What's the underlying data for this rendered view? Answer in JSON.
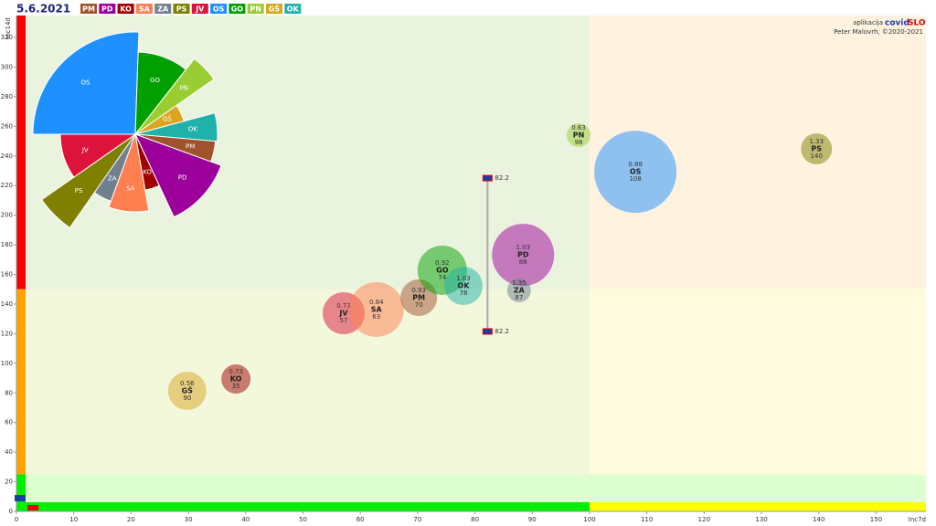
{
  "date": "5.6.2021",
  "legend": [
    {
      "name": "PM",
      "color": "#a0522d"
    },
    {
      "name": "PD",
      "color": "#9b009b"
    },
    {
      "name": "KO",
      "color": "#a00000"
    },
    {
      "name": "SA",
      "color": "#ff7f50"
    },
    {
      "name": "ZA",
      "color": "#708090"
    },
    {
      "name": "PS",
      "color": "#808000"
    },
    {
      "name": "JV",
      "color": "#dc143c"
    },
    {
      "name": "OS",
      "color": "#1e90ff"
    },
    {
      "name": "GO",
      "color": "#00a000"
    },
    {
      "name": "PN",
      "color": "#9acd32"
    },
    {
      "name": "GŠ",
      "color": "#daa520"
    },
    {
      "name": "OK",
      "color": "#20b2aa"
    }
  ],
  "credit": {
    "app": "aplikacija",
    "brand1": "covid",
    "brand2": "SLO",
    "author": "Peter Malovrh, ©2020-2021"
  },
  "chart_data": [
    {
      "type": "bubble",
      "x_label": "Inc7d",
      "y_label": "Inc14d",
      "xlim": [
        0,
        158.7
      ],
      "ylim": [
        0,
        334.8
      ],
      "xticks": [
        0,
        10,
        20,
        30,
        40,
        50,
        60,
        70,
        80,
        90,
        100,
        110,
        120,
        130,
        140,
        150
      ],
      "yticks": [
        0,
        20,
        40,
        60,
        80,
        100,
        120,
        140,
        160,
        180,
        200,
        220,
        240,
        260,
        280,
        300,
        320
      ],
      "xthreshold": 100,
      "ythresholds": [
        25,
        150
      ],
      "names": [
        "GŠ",
        "KO",
        "JV",
        "SA",
        "PM",
        "GO",
        "OK",
        "PD",
        "ZA",
        "PN",
        "OS",
        "PS"
      ],
      "x": [
        29.8,
        38.3,
        57.1,
        62.8,
        70.2,
        74.3,
        78.0,
        88.4,
        87.7,
        98.1,
        108.0,
        139.6
      ],
      "y": [
        81.4,
        89.4,
        133.8,
        136.3,
        144.3,
        162.8,
        152.3,
        173.2,
        149.2,
        254.0,
        229.3,
        244.8
      ],
      "sizes": [
        21,
        16,
        23,
        30,
        20,
        27,
        21,
        34,
        13,
        13,
        45,
        17
      ],
      "ratios": [
        0.56,
        0.73,
        0.73,
        0.84,
        0.93,
        0.92,
        1.03,
        1.03,
        1.35,
        0.63,
        0.88,
        1.33
      ],
      "counts": [
        90,
        35,
        57,
        63,
        70,
        74,
        78,
        88,
        87,
        98,
        108,
        140
      ],
      "slovenia": {
        "x": 82.2,
        "ylow": 121.5,
        "yhigh": 225
      }
    },
    {
      "type": "polar",
      "categories": [
        "OS",
        "GO",
        "PN",
        "GŠ",
        "OK",
        "PM",
        "PD",
        "KO",
        "SA",
        "ZA",
        "PS",
        "JV"
      ],
      "spans": [
        92,
        36,
        17,
        20,
        20,
        15,
        45,
        15,
        30,
        15,
        20,
        35
      ],
      "values": [
        112,
        90,
        105,
        55,
        90,
        88,
        100,
        62,
        85,
        78,
        125,
        82
      ],
      "rlim": [
        0,
        125
      ]
    }
  ]
}
